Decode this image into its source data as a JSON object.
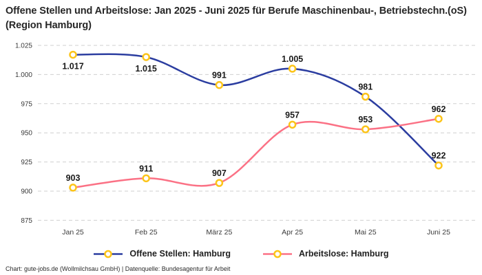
{
  "header": {
    "title": "Offene Stellen und Arbeitslose: Jan 2025 - Juni 2025 für Berufe Maschinenbau-, Betriebstechn.(oS) (Region Hamburg)"
  },
  "footer": {
    "credit": "Chart: gute-jobs.de (Wollmilchsau GmbH) | Datenquelle: Bundesagentur für Arbeit"
  },
  "colors": {
    "offene_stellen_line": "#2b3da0",
    "arbeitslose_line": "#fb7185",
    "marker_stroke": "#fcc419",
    "marker_fill": "#ffffff",
    "gridline": "#cfcfcf",
    "tick_text": "#3a3a3a",
    "label_text": "#1a1a1a"
  },
  "chart_data": {
    "type": "line",
    "title": "Offene Stellen und Arbeitslose: Jan 2025 - Juni 2025 für Berufe Maschinenbau-, Betriebstechn.(oS) (Region Hamburg)",
    "xlabel": "",
    "ylabel": "",
    "categories": [
      "Jan 25",
      "Feb 25",
      "März 25",
      "Apr 25",
      "Mai 25",
      "Juni 25"
    ],
    "series": [
      {
        "name": "Offene Stellen: Hamburg",
        "values": [
          1017,
          1015,
          991,
          1005,
          981,
          922
        ],
        "point_labels": [
          "1.017",
          "1.015",
          "991",
          "1.005",
          "981",
          "922"
        ],
        "color": "#2b3da0",
        "label_positions": [
          "below",
          "below",
          "above",
          "above",
          "above",
          "above"
        ]
      },
      {
        "name": "Arbeitslose: Hamburg",
        "values": [
          903,
          911,
          907,
          957,
          953,
          962
        ],
        "point_labels": [
          "903",
          "911",
          "907",
          "957",
          "953",
          "962"
        ],
        "color": "#fb7185",
        "label_positions": [
          "above",
          "above",
          "above",
          "above",
          "above",
          "above"
        ]
      }
    ],
    "y_ticks": [
      1025,
      1000,
      975,
      950,
      925,
      900,
      875
    ],
    "y_tick_labels": [
      "1.025",
      "1.000",
      "975",
      "950",
      "925",
      "900",
      "875"
    ],
    "ylim": [
      875,
      1025
    ],
    "grid": "horizontal-dashed",
    "legend_position": "bottom",
    "line_style": "smooth",
    "marker": "open-circle"
  }
}
